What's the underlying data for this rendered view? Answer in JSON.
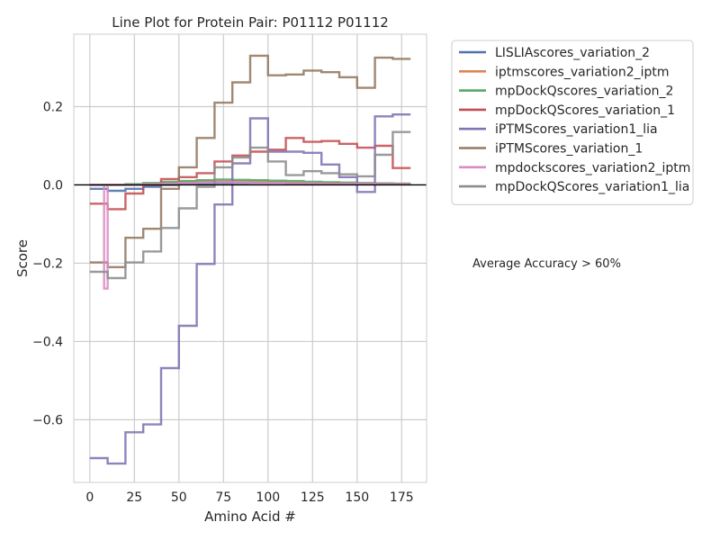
{
  "chart_data": {
    "type": "line",
    "title": "Line Plot for Protein Pair: P01112 P01112",
    "xlabel": "Amino Acid #",
    "ylabel": "Score",
    "xlim": [
      -9,
      189
    ],
    "ylim": [
      -0.76,
      0.385
    ],
    "xticks": [
      0,
      25,
      50,
      75,
      100,
      125,
      150,
      175
    ],
    "xtick_labels": [
      "0",
      "25",
      "50",
      "75",
      "100",
      "125",
      "150",
      "175"
    ],
    "yticks": [
      -0.6,
      -0.4,
      -0.2,
      0.0,
      0.2
    ],
    "ytick_labels": [
      "−0.6",
      "−0.4",
      "−0.2",
      "0.0",
      "0.2"
    ],
    "grid": true,
    "legend_position": "outside-top-right",
    "reference_line": {
      "y": 0,
      "color": "#000000"
    },
    "annotation": "Average Accuracy > 60%",
    "series": [
      {
        "name": "LISLIAscores_variation_2",
        "color": "#4c72b0",
        "x": [
          0,
          10,
          20,
          30,
          40,
          50,
          60,
          70,
          80,
          90,
          100,
          110,
          120,
          130,
          140,
          150,
          160,
          170,
          180
        ],
        "y": [
          -0.01,
          -0.015,
          -0.01,
          -0.005,
          0.0,
          0.003,
          0.004,
          0.005,
          0.005,
          0.005,
          0.005,
          0.004,
          0.004,
          0.003,
          0.003,
          0.002,
          0.002,
          0.002,
          0.002
        ]
      },
      {
        "name": "iptmscores_variation2_iptm",
        "color": "#dd8452",
        "x": [
          0,
          10,
          20,
          30,
          40,
          50,
          60,
          70,
          80,
          90,
          100,
          110,
          120,
          130,
          140,
          150,
          160,
          170,
          180
        ],
        "y": [
          0.0,
          0.0,
          0.0,
          0.002,
          0.005,
          0.008,
          0.01,
          0.01,
          0.01,
          0.01,
          0.008,
          0.007,
          0.006,
          0.005,
          0.004,
          0.004,
          0.003,
          0.003,
          0.003
        ]
      },
      {
        "name": "mpDockQscores_variation_2",
        "color": "#55a868",
        "x": [
          0,
          10,
          20,
          30,
          40,
          50,
          60,
          70,
          80,
          90,
          100,
          110,
          120,
          130,
          140,
          150,
          160,
          170,
          180
        ],
        "y": [
          0.0,
          0.0,
          0.002,
          0.005,
          0.008,
          0.01,
          0.012,
          0.014,
          0.013,
          0.012,
          0.011,
          0.01,
          0.008,
          0.007,
          0.006,
          0.005,
          0.004,
          0.003,
          0.003
        ]
      },
      {
        "name": "mpDockQScores_variation_1",
        "color": "#c44e52",
        "x": [
          0,
          10,
          20,
          30,
          40,
          50,
          60,
          70,
          80,
          90,
          100,
          110,
          120,
          130,
          140,
          150,
          160,
          170,
          180
        ],
        "y": [
          -0.048,
          -0.062,
          -0.022,
          0.0,
          0.015,
          0.02,
          0.03,
          0.06,
          0.075,
          0.085,
          0.09,
          0.12,
          0.11,
          0.112,
          0.105,
          0.095,
          0.1,
          0.043,
          0.043
        ]
      },
      {
        "name": "iPTMScores_variation1_lia",
        "color": "#8172b3",
        "x": [
          0,
          10,
          20,
          30,
          40,
          50,
          60,
          70,
          80,
          90,
          100,
          110,
          120,
          130,
          140,
          150,
          160,
          170,
          180
        ],
        "y": [
          -0.698,
          -0.712,
          -0.632,
          -0.612,
          -0.468,
          -0.36,
          -0.202,
          -0.05,
          0.055,
          0.17,
          0.085,
          0.085,
          0.082,
          0.052,
          0.02,
          -0.018,
          0.175,
          0.18,
          0.18
        ]
      },
      {
        "name": "iPTMScores_variation_1",
        "color": "#937860",
        "x": [
          0,
          10,
          20,
          30,
          40,
          50,
          60,
          70,
          80,
          90,
          100,
          110,
          120,
          130,
          140,
          150,
          160,
          170,
          180
        ],
        "y": [
          -0.198,
          -0.21,
          -0.135,
          -0.112,
          -0.01,
          0.045,
          0.12,
          0.21,
          0.262,
          0.33,
          0.28,
          0.282,
          0.292,
          0.288,
          0.275,
          0.248,
          0.325,
          0.322,
          0.322
        ]
      },
      {
        "name": "mpdockscores_variation2_iptm",
        "color": "#da8bc3",
        "x": [
          0,
          8,
          8,
          10,
          20,
          30,
          40,
          50,
          60,
          70,
          80,
          90,
          100,
          110,
          120,
          130,
          140,
          150,
          160,
          170,
          180
        ],
        "y": [
          0.0,
          0.0,
          -0.265,
          0.0,
          0.0,
          0.002,
          0.003,
          0.005,
          0.006,
          0.007,
          0.006,
          0.005,
          0.005,
          0.004,
          0.004,
          0.003,
          0.003,
          0.003,
          0.002,
          0.002,
          0.002
        ]
      },
      {
        "name": "mpDockQScores_variation1_lia",
        "color": "#8c8c8c",
        "x": [
          0,
          10,
          20,
          30,
          40,
          50,
          60,
          70,
          80,
          90,
          100,
          110,
          120,
          130,
          140,
          150,
          160,
          170,
          180
        ],
        "y": [
          -0.222,
          -0.238,
          -0.198,
          -0.17,
          -0.11,
          -0.06,
          -0.005,
          0.045,
          0.07,
          0.095,
          0.06,
          0.025,
          0.035,
          0.03,
          0.027,
          0.022,
          0.077,
          0.135,
          0.135
        ]
      }
    ]
  }
}
